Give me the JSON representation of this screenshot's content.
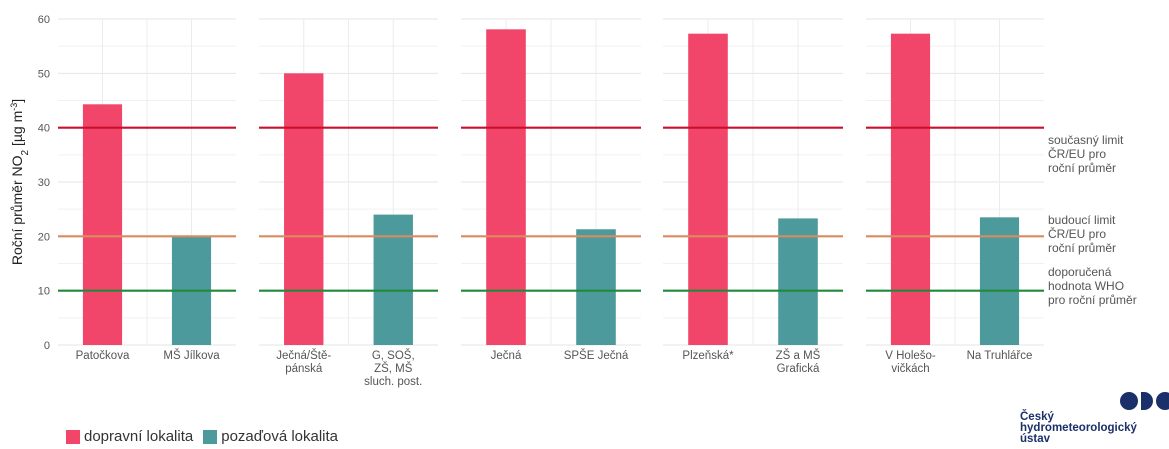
{
  "chart_data": {
    "type": "bar",
    "ylabel_main": "Roční průměr NO",
    "ylabel_sub": "2",
    "ylabel_unit": "[µg m",
    "ylabel_sup": "-3",
    "ylabel_close": "]",
    "ylim": [
      0,
      60
    ],
    "yticks": [
      0,
      10,
      20,
      30,
      40,
      50,
      60
    ],
    "grid": true,
    "legend_position": "bottom-left",
    "series": [
      {
        "name": "dopravní lokalita",
        "color": "#f2456a"
      },
      {
        "name": "pozaďová lokalita",
        "color": "#4d9a9c"
      }
    ],
    "panels": [
      {
        "bars": [
          {
            "label": [
              "Patočkova"
            ],
            "value": 44.3,
            "series": 0
          },
          {
            "label": [
              "MŠ Jílkova"
            ],
            "value": 19.9,
            "series": 1
          }
        ]
      },
      {
        "bars": [
          {
            "label": [
              "Ječná/Ště-",
              "pánská"
            ],
            "value": 50.0,
            "series": 0
          },
          {
            "label": [
              "G, SOŠ,",
              "ZŠ, MŠ",
              "sluch. post."
            ],
            "value": 24.0,
            "series": 1
          }
        ]
      },
      {
        "bars": [
          {
            "label": [
              "Ječná"
            ],
            "value": 58.1,
            "series": 0
          },
          {
            "label": [
              "SPŠE Ječná"
            ],
            "value": 21.3,
            "series": 1
          }
        ]
      },
      {
        "bars": [
          {
            "label": [
              "Plzeňská*"
            ],
            "value": 57.3,
            "series": 0
          },
          {
            "label": [
              "ZŠ a MŠ",
              "Grafická"
            ],
            "value": 23.3,
            "series": 1
          }
        ]
      },
      {
        "bars": [
          {
            "label": [
              "V Holešo-",
              "vičkách"
            ],
            "value": 57.3,
            "series": 0
          },
          {
            "label": [
              "Na Truhlářce"
            ],
            "value": 23.5,
            "series": 1
          }
        ]
      }
    ],
    "reference_lines": [
      {
        "value": 40,
        "color": "#c8102e",
        "label": [
          "současný limit",
          "ČR/EU pro",
          "roční průměr"
        ]
      },
      {
        "value": 20,
        "color": "#d98c5f",
        "label": [
          "budoucí limit",
          "ČR/EU pro",
          "roční průměr"
        ]
      },
      {
        "value": 10,
        "color": "#1f8a3a",
        "label": [
          "doporučená",
          "hodnota WHO",
          "pro roční průměr"
        ]
      }
    ]
  },
  "legend": {
    "items": [
      {
        "label": "dopravní lokalita",
        "color": "#f2456a"
      },
      {
        "label": "pozaďová lokalita",
        "color": "#4d9a9c"
      }
    ]
  },
  "logo": {
    "text": "Český\nhydrometeorologický\nústav",
    "icon": "chmi-logo-dots"
  }
}
